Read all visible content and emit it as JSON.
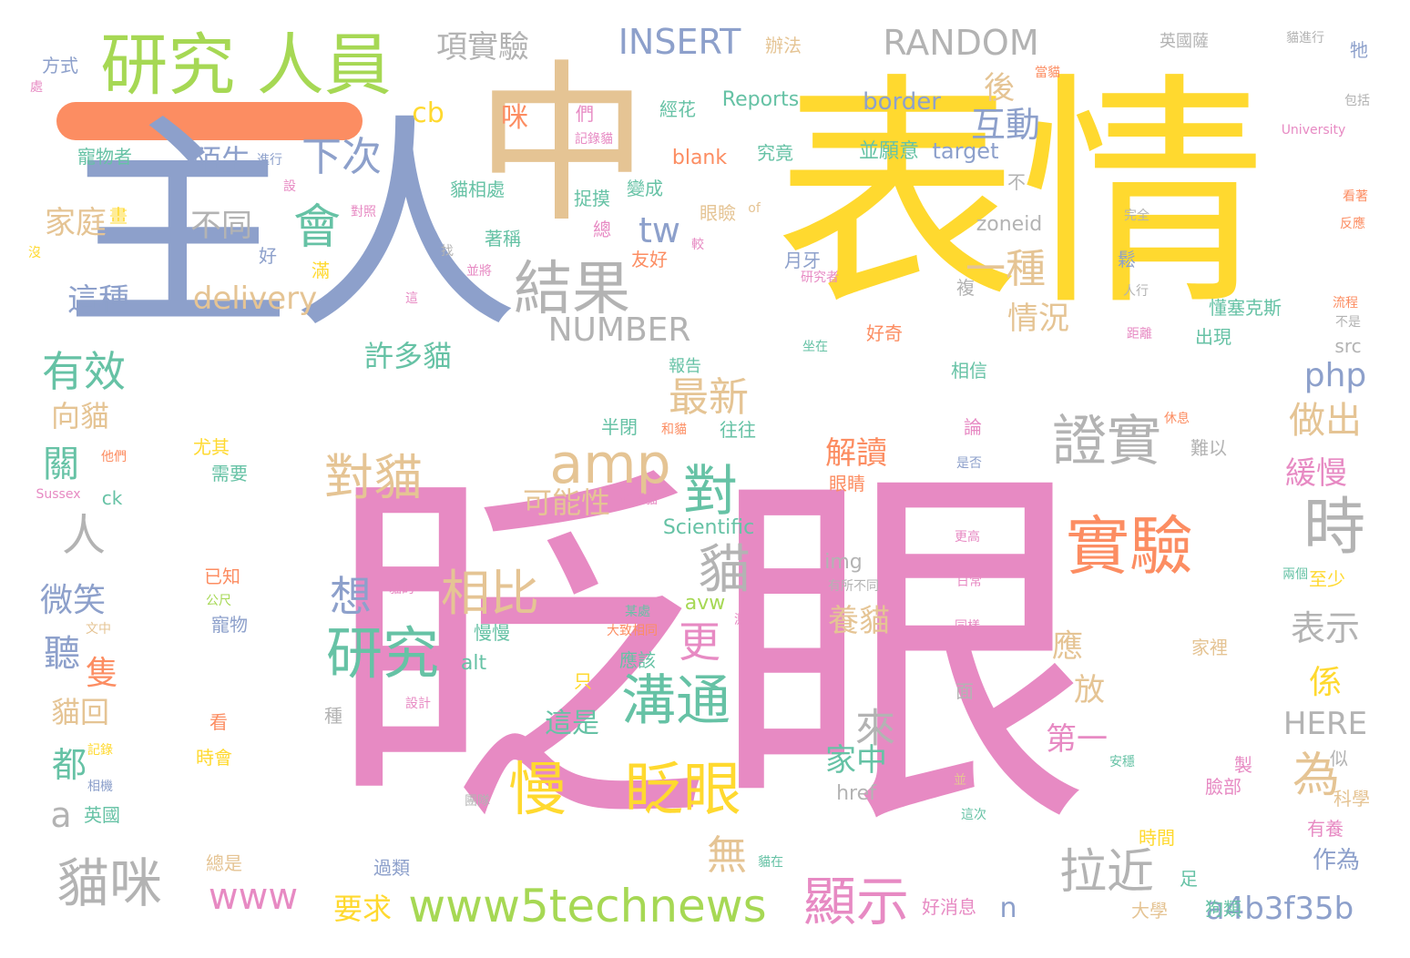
{
  "colors": {
    "pink": "#e78ac3",
    "yellow": "#ffd92f",
    "blue": "#8da0cb",
    "green": "#a6d854",
    "teal": "#66c2a5",
    "orange": "#fc8d62",
    "tan": "#e5c494",
    "gray": "#b3b3b3"
  },
  "decor": {
    "bar_color": "orange"
  },
  "words": [
    {
      "text": "眨眼",
      "color": "pink"
    },
    {
      "text": "表情",
      "color": "yellow"
    },
    {
      "text": "主人",
      "color": "blue"
    },
    {
      "text": "中",
      "color": "tan"
    },
    {
      "text": "研究 人員",
      "color": "green"
    },
    {
      "text": "實驗",
      "color": "orange"
    },
    {
      "text": "時",
      "color": "gray"
    },
    {
      "text": "證實",
      "color": "gray"
    },
    {
      "text": "慢",
      "color": "yellow"
    },
    {
      "text": "眨眼",
      "color": "yellow"
    },
    {
      "text": "溝通",
      "color": "teal"
    },
    {
      "text": "研究",
      "color": "teal"
    },
    {
      "text": "顯示",
      "color": "pink"
    },
    {
      "text": "貓咪",
      "color": "gray"
    },
    {
      "text": "www5technews",
      "color": "green"
    },
    {
      "text": "amp",
      "color": "tan"
    },
    {
      "text": "結果",
      "color": "gray"
    },
    {
      "text": "對貓",
      "color": "tan"
    },
    {
      "text": "相比",
      "color": "tan"
    },
    {
      "text": "對",
      "color": "teal"
    },
    {
      "text": "貓",
      "color": "gray"
    },
    {
      "text": "拉近",
      "color": "gray"
    },
    {
      "text": "為",
      "color": "tan"
    },
    {
      "text": "會",
      "color": "teal"
    },
    {
      "text": "有效",
      "color": "teal"
    },
    {
      "text": "人",
      "color": "gray"
    },
    {
      "text": "RANDOM",
      "color": "gray"
    },
    {
      "text": "INSERT",
      "color": "blue"
    },
    {
      "text": "NUMBER",
      "color": "gray"
    },
    {
      "text": "delivery",
      "color": "tan"
    },
    {
      "text": "tw",
      "color": "blue"
    },
    {
      "text": "最新",
      "color": "tan"
    },
    {
      "text": "一種",
      "color": "tan"
    },
    {
      "text": "下次",
      "color": "blue"
    },
    {
      "text": "互動",
      "color": "blue"
    },
    {
      "text": "項實驗",
      "color": "gray"
    },
    {
      "text": "a4b3f35b",
      "color": "blue"
    },
    {
      "text": "www",
      "color": "pink"
    },
    {
      "text": "做出",
      "color": "tan"
    },
    {
      "text": "php",
      "color": "blue"
    },
    {
      "text": "表示",
      "color": "gray"
    },
    {
      "text": "緩慢",
      "color": "pink"
    },
    {
      "text": "想",
      "color": "blue"
    },
    {
      "text": "更",
      "color": "pink"
    },
    {
      "text": "養貓",
      "color": "tan"
    },
    {
      "text": "解讀",
      "color": "orange"
    },
    {
      "text": "無",
      "color": "tan"
    },
    {
      "text": "家中",
      "color": "teal"
    },
    {
      "text": "來",
      "color": "gray"
    },
    {
      "text": "情況",
      "color": "tan"
    },
    {
      "text": "這種",
      "color": "blue"
    },
    {
      "text": "家庭",
      "color": "tan"
    },
    {
      "text": "不同",
      "color": "gray"
    },
    {
      "text": "陌生",
      "color": "blue"
    },
    {
      "text": "許多貓",
      "color": "teal"
    },
    {
      "text": "可能性",
      "color": "tan"
    },
    {
      "text": "微笑",
      "color": "blue"
    },
    {
      "text": "聽",
      "color": "blue"
    },
    {
      "text": "關",
      "color": "teal"
    },
    {
      "text": "向貓",
      "color": "tan"
    },
    {
      "text": "隻",
      "color": "orange"
    },
    {
      "text": "貓回",
      "color": "tan"
    },
    {
      "text": "都",
      "color": "teal"
    },
    {
      "text": "a",
      "color": "gray"
    },
    {
      "text": "要求",
      "color": "yellow"
    },
    {
      "text": "這是",
      "color": "teal"
    },
    {
      "text": "第一",
      "color": "pink"
    },
    {
      "text": "HERE",
      "color": "gray"
    },
    {
      "text": "係",
      "color": "yellow"
    },
    {
      "text": "放",
      "color": "tan"
    },
    {
      "text": "應",
      "color": "tan"
    },
    {
      "text": "n",
      "color": "blue"
    },
    {
      "text": "作為",
      "color": "blue"
    },
    {
      "text": "後",
      "color": "tan"
    },
    {
      "text": "cb",
      "color": "yellow"
    },
    {
      "text": "咪",
      "color": "orange"
    },
    {
      "text": "border",
      "color": "blue"
    },
    {
      "text": "Reports",
      "color": "teal"
    },
    {
      "text": "blank",
      "color": "orange"
    },
    {
      "text": "target",
      "color": "blue"
    },
    {
      "text": "zoneid",
      "color": "gray"
    },
    {
      "text": "Scientific",
      "color": "teal"
    },
    {
      "text": "img",
      "color": "gray"
    },
    {
      "text": "href",
      "color": "gray"
    },
    {
      "text": "avw",
      "color": "green"
    },
    {
      "text": "alt",
      "color": "teal"
    },
    {
      "text": "ck",
      "color": "teal"
    },
    {
      "text": "src",
      "color": "gray"
    },
    {
      "text": "University",
      "color": "pink"
    },
    {
      "text": "Sussex",
      "color": "pink"
    },
    {
      "text": "方式",
      "color": "blue"
    },
    {
      "text": "寵物者",
      "color": "teal"
    },
    {
      "text": "辦法",
      "color": "tan"
    },
    {
      "text": "英國薩",
      "color": "gray"
    },
    {
      "text": "貓進行",
      "color": "gray"
    },
    {
      "text": "牠",
      "color": "blue"
    },
    {
      "text": "包括",
      "color": "gray"
    },
    {
      "text": "當貓",
      "color": "orange"
    },
    {
      "text": "經花",
      "color": "teal"
    },
    {
      "text": "究竟",
      "color": "teal"
    },
    {
      "text": "並願意",
      "color": "teal"
    },
    {
      "text": "捉摸",
      "color": "teal"
    },
    {
      "text": "變成",
      "color": "teal"
    },
    {
      "text": "貓相處",
      "color": "teal"
    },
    {
      "text": "著稱",
      "color": "teal"
    },
    {
      "text": "眼瞼",
      "color": "tan"
    },
    {
      "text": "友好",
      "color": "orange"
    },
    {
      "text": "好奇",
      "color": "orange"
    },
    {
      "text": "報告",
      "color": "teal"
    },
    {
      "text": "相信",
      "color": "teal"
    },
    {
      "text": "懂塞克斯",
      "color": "teal"
    },
    {
      "text": "出現",
      "color": "teal"
    },
    {
      "text": "半閉",
      "color": "teal"
    },
    {
      "text": "往往",
      "color": "teal"
    },
    {
      "text": "尤其",
      "color": "yellow"
    },
    {
      "text": "需要",
      "color": "teal"
    },
    {
      "text": "眼睛",
      "color": "orange"
    },
    {
      "text": "難以",
      "color": "gray"
    },
    {
      "text": "已知",
      "color": "orange"
    },
    {
      "text": "寵物",
      "color": "blue"
    },
    {
      "text": "慢慢",
      "color": "teal"
    },
    {
      "text": "應該",
      "color": "teal"
    },
    {
      "text": "家裡",
      "color": "tan"
    },
    {
      "text": "至少",
      "color": "yellow"
    },
    {
      "text": "時會",
      "color": "yellow"
    },
    {
      "text": "看",
      "color": "orange"
    },
    {
      "text": "英國",
      "color": "teal"
    },
    {
      "text": "總是",
      "color": "tan"
    },
    {
      "text": "過類",
      "color": "blue"
    },
    {
      "text": "好消息",
      "color": "pink"
    },
    {
      "text": "狗類",
      "color": "teal"
    },
    {
      "text": "大學",
      "color": "tan"
    },
    {
      "text": "時間",
      "color": "yellow"
    },
    {
      "text": "有養",
      "color": "pink"
    },
    {
      "text": "科學",
      "color": "tan"
    },
    {
      "text": "臉部",
      "color": "pink"
    },
    {
      "text": "製",
      "color": "pink"
    },
    {
      "text": "似",
      "color": "gray"
    },
    {
      "text": "足",
      "color": "teal"
    },
    {
      "text": "面",
      "color": "gray"
    },
    {
      "text": "種",
      "color": "gray"
    },
    {
      "text": "只",
      "color": "yellow"
    },
    {
      "text": "好",
      "color": "blue"
    },
    {
      "text": "畫",
      "color": "yellow"
    },
    {
      "text": "滿",
      "color": "yellow"
    },
    {
      "text": "找",
      "color": "gray"
    },
    {
      "text": "總",
      "color": "pink"
    },
    {
      "text": "較",
      "color": "pink"
    },
    {
      "text": "不",
      "color": "gray"
    },
    {
      "text": "鬆",
      "color": "blue"
    },
    {
      "text": "複",
      "color": "gray"
    },
    {
      "text": "論",
      "color": "pink"
    },
    {
      "text": "並",
      "color": "tan"
    },
    {
      "text": "沒",
      "color": "yellow"
    },
    {
      "text": "處",
      "color": "pink"
    },
    {
      "text": "們",
      "color": "pink"
    },
    {
      "text": "記錄貓",
      "color": "pink"
    },
    {
      "text": "進行",
      "color": "blue"
    },
    {
      "text": "設",
      "color": "pink"
    },
    {
      "text": "對照",
      "color": "pink"
    },
    {
      "text": "他們",
      "color": "orange"
    },
    {
      "text": "文中",
      "color": "tan"
    },
    {
      "text": "公尺",
      "color": "green"
    },
    {
      "text": "貓的",
      "color": "pink"
    },
    {
      "text": "某處",
      "color": "teal"
    },
    {
      "text": "大致相同",
      "color": "orange"
    },
    {
      "text": "設計",
      "color": "pink"
    },
    {
      "text": "記錄",
      "color": "yellow"
    },
    {
      "text": "相機",
      "color": "blue"
    },
    {
      "text": "團隊",
      "color": "gray"
    },
    {
      "text": "貓在",
      "color": "teal"
    },
    {
      "text": "確認貓",
      "color": "pink"
    },
    {
      "text": "和貓",
      "color": "orange"
    },
    {
      "text": "坐在",
      "color": "teal"
    },
    {
      "text": "有所不同",
      "color": "gray"
    },
    {
      "text": "測試",
      "color": "pink"
    },
    {
      "text": "是否",
      "color": "blue"
    },
    {
      "text": "更高",
      "color": "pink"
    },
    {
      "text": "日常",
      "color": "pink"
    },
    {
      "text": "同樣",
      "color": "pink"
    },
    {
      "text": "這次",
      "color": "teal"
    },
    {
      "text": "安穩",
      "color": "teal"
    },
    {
      "text": "休息",
      "color": "orange"
    },
    {
      "text": "兩個",
      "color": "teal"
    },
    {
      "text": "距離",
      "color": "pink"
    },
    {
      "text": "人行",
      "color": "gray"
    },
    {
      "text": "流程",
      "color": "orange"
    },
    {
      "text": "不是",
      "color": "gray"
    },
    {
      "text": "完全",
      "color": "gray"
    },
    {
      "text": "看著",
      "color": "orange"
    },
    {
      "text": "反應",
      "color": "orange"
    },
    {
      "text": "of",
      "color": "tan"
    },
    {
      "text": "月牙",
      "color": "blue"
    },
    {
      "text": "研究者",
      "color": "pink"
    },
    {
      "text": "並將",
      "color": "pink"
    },
    {
      "text": "這",
      "color": "pink"
    }
  ]
}
